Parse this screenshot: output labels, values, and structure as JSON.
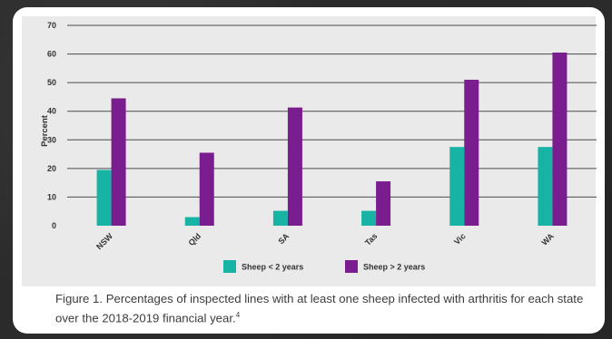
{
  "chart_data": {
    "type": "bar",
    "categories": [
      "NSW",
      "Qld",
      "SA",
      "Tas",
      "Vic",
      "WA"
    ],
    "series": [
      {
        "name": "Sheep < 2 years",
        "color": "#17b3a4",
        "values": [
          19.5,
          3,
          5.2,
          5.2,
          27.5,
          27.5
        ]
      },
      {
        "name": "Sheep > 2 years",
        "color": "#7a1d8e",
        "values": [
          44.5,
          25.5,
          41.3,
          15.5,
          51,
          60.5
        ]
      }
    ],
    "ylabel": "Percent",
    "ylim": [
      0,
      70
    ],
    "yticks": [
      0,
      10,
      20,
      30,
      40,
      50,
      60,
      70
    ],
    "grid": true,
    "legend": "bottom-center"
  },
  "caption": {
    "text": "Figure 1. Percentages of inspected lines with at least one sheep infected with arthritis for each state over the 2018-2019 financial year.",
    "footnote": "4"
  }
}
